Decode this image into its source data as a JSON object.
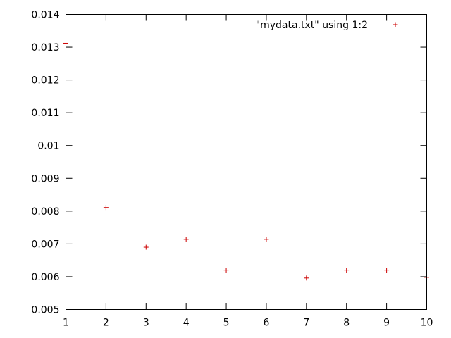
{
  "chart_data": {
    "type": "scatter",
    "title": "",
    "xlabel": "",
    "ylabel": "",
    "xlim": [
      1,
      10
    ],
    "ylim": [
      0.005,
      0.014
    ],
    "x_ticks": [
      "1",
      "2",
      "3",
      "4",
      "5",
      "6",
      "7",
      "8",
      "9",
      "10"
    ],
    "y_ticks": [
      "0.005",
      "0.006",
      "0.007",
      "0.008",
      "0.009",
      "0.01",
      "0.011",
      "0.012",
      "0.013",
      "0.014"
    ],
    "grid": false,
    "legend_position": "top-right",
    "series": [
      {
        "name": "\"mydata.txt\" using 1:2",
        "color": "#cc0000",
        "marker": "plus",
        "x": [
          1,
          2,
          3,
          4,
          5,
          6,
          7,
          8,
          9,
          10
        ],
        "y": [
          0.01312,
          0.00811,
          0.0069,
          0.00714,
          0.0062,
          0.00714,
          0.00596,
          0.0062,
          0.0062,
          0.00598
        ]
      }
    ]
  }
}
